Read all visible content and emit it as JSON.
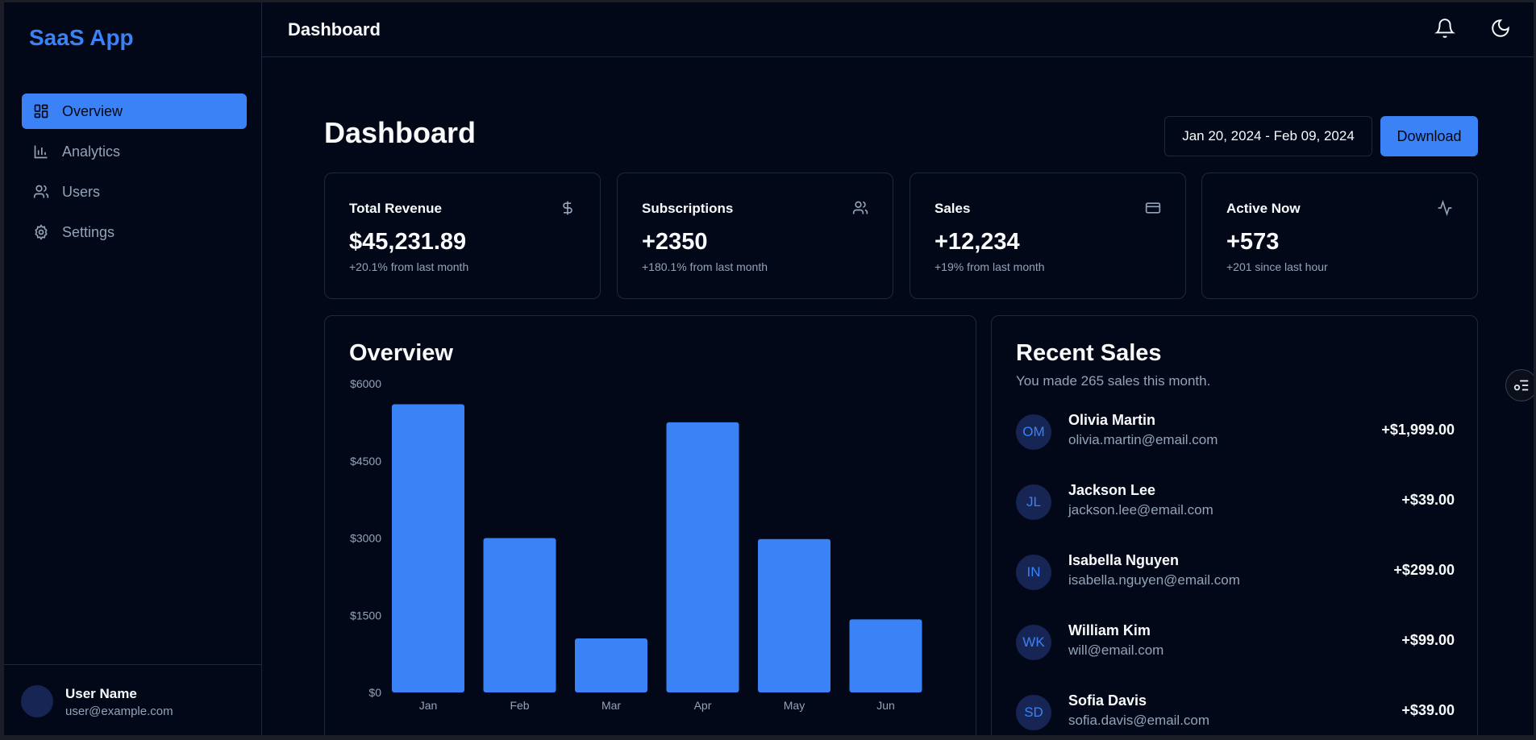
{
  "app": {
    "brand": "SaaS App"
  },
  "sidebar": {
    "items": [
      {
        "label": "Overview",
        "icon": "layout-grid-icon",
        "active": true
      },
      {
        "label": "Analytics",
        "icon": "bar-chart-icon"
      },
      {
        "label": "Users",
        "icon": "users-icon"
      },
      {
        "label": "Settings",
        "icon": "gear-icon"
      }
    ],
    "user": {
      "name": "User Name",
      "email": "user@example.com"
    }
  },
  "topbar": {
    "title": "Dashboard",
    "icons": [
      "bell-icon",
      "moon-icon"
    ]
  },
  "main": {
    "title": "Dashboard",
    "date_range": "Jan 20, 2024 - Feb 09, 2024",
    "download_label": "Download",
    "stats": [
      {
        "title": "Total Revenue",
        "value": "$45,231.89",
        "sub": "+20.1% from last month",
        "icon": "dollar-icon"
      },
      {
        "title": "Subscriptions",
        "value": "+2350",
        "sub": "+180.1% from last month",
        "icon": "users-icon"
      },
      {
        "title": "Sales",
        "value": "+12,234",
        "sub": "+19% from last month",
        "icon": "credit-card-icon"
      },
      {
        "title": "Active Now",
        "value": "+573",
        "sub": "+201 since last hour",
        "icon": "activity-icon"
      }
    ],
    "overview": {
      "title": "Overview"
    },
    "recent_sales": {
      "title": "Recent Sales",
      "subtitle": "You made 265 sales this month.",
      "rows": [
        {
          "initials": "OM",
          "name": "Olivia Martin",
          "email": "olivia.martin@email.com",
          "amount": "+$1,999.00"
        },
        {
          "initials": "JL",
          "name": "Jackson Lee",
          "email": "jackson.lee@email.com",
          "amount": "+$39.00"
        },
        {
          "initials": "IN",
          "name": "Isabella Nguyen",
          "email": "isabella.nguyen@email.com",
          "amount": "+$299.00"
        },
        {
          "initials": "WK",
          "name": "William Kim",
          "email": "will@email.com",
          "amount": "+$99.00"
        },
        {
          "initials": "SD",
          "name": "Sofia Davis",
          "email": "sofia.davis@email.com",
          "amount": "+$39.00"
        }
      ]
    }
  },
  "colors": {
    "accent": "#3b82f6",
    "background": "#020817",
    "border": "#1e293b",
    "muted": "#94a3b8"
  },
  "chart_data": {
    "type": "bar",
    "categories": [
      "Jan",
      "Feb",
      "Mar",
      "Apr",
      "May",
      "Jun"
    ],
    "values": [
      5600,
      3000,
      1050,
      5250,
      2980,
      1420
    ],
    "ylim": [
      0,
      6000
    ],
    "yticks": [
      0,
      1500,
      3000,
      4500,
      6000
    ],
    "ytick_labels": [
      "$0",
      "$1500",
      "$3000",
      "$4500",
      "$6000"
    ],
    "grid": false,
    "title": "",
    "xlabel": "",
    "ylabel": ""
  }
}
